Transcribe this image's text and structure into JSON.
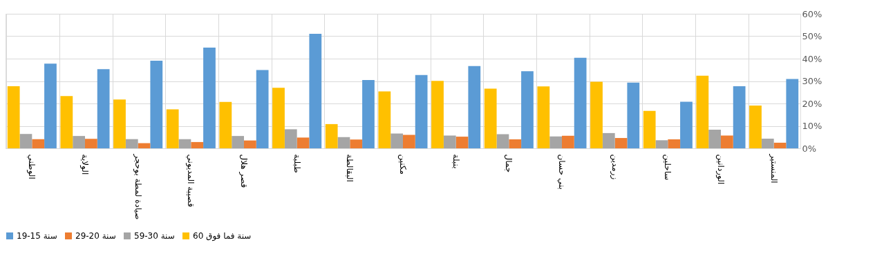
{
  "chart_data": {
    "type": "bar",
    "categories": [
      "الوطني",
      "الولاية",
      "صيادة لمطة بوحجر",
      "قصيبة المديوني",
      "قصر هلال",
      "طبلبة",
      "البقالطة",
      "مكنين",
      "بنبلة",
      "جمال",
      "بني حسان",
      "زرمدين",
      "ساحلين",
      "الوردانين",
      "المنستير"
    ],
    "series": [
      {
        "name": "19-15 سنة",
        "color": "#5b9bd5",
        "values": [
          37.8,
          35.3,
          39.1,
          44.9,
          34.9,
          51.1,
          30.5,
          32.7,
          36.7,
          34.4,
          40.4,
          29.3,
          20.8,
          27.7,
          30.9
        ]
      },
      {
        "name": "29-20 سنة",
        "color": "#ed7d31",
        "values": [
          4.1,
          4.2,
          2.3,
          2.8,
          3.5,
          4.8,
          3.9,
          6.0,
          5.2,
          4.0,
          5.6,
          4.6,
          4.0,
          5.7,
          2.5
        ]
      },
      {
        "name": "59-30 سنة",
        "color": "#a5a5a5",
        "values": [
          6.4,
          5.5,
          4.1,
          4.1,
          5.5,
          8.5,
          5.0,
          6.6,
          5.7,
          6.3,
          5.3,
          6.8,
          3.6,
          8.3,
          4.3
        ]
      },
      {
        "name": "60 سنة فما فوق",
        "color": "#ffc000",
        "values": [
          27.7,
          23.3,
          21.8,
          17.4,
          20.7,
          27.0,
          10.8,
          25.4,
          30.1,
          26.6,
          27.6,
          29.7,
          16.7,
          32.4,
          19.1
        ]
      }
    ],
    "ylim": [
      0,
      60
    ],
    "yticks": [
      {
        "value": 0,
        "label": "0%"
      },
      {
        "value": 10,
        "label": "10%"
      },
      {
        "value": 20,
        "label": "20%"
      },
      {
        "value": 30,
        "label": "30%"
      },
      {
        "value": 40,
        "label": "40%"
      },
      {
        "value": 50,
        "label": "50%"
      },
      {
        "value": 60,
        "label": "60%"
      }
    ],
    "grid": true,
    "legend": "bottom"
  }
}
